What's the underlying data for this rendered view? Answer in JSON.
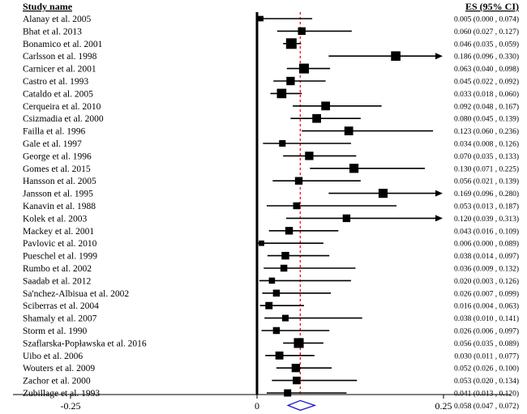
{
  "chart_data": {
    "type": "forest",
    "header_study": "Study name",
    "header_es": "ES (95% CI)",
    "x_ticks": [
      {
        "value": -0.25,
        "label": "-0.25"
      },
      {
        "value": 0,
        "label": "0"
      },
      {
        "value": 0.25,
        "label": "0.25"
      }
    ],
    "xlim": [
      -0.33,
      0.33
    ],
    "pooled_line": 0.058,
    "studies": [
      {
        "name": "Alanay et al. 2005",
        "es": 0.005,
        "lo": 0.0,
        "hi": 0.074,
        "label": "0.005 (0.000 , 0.074)",
        "weight": 0.3
      },
      {
        "name": "Bhat et al. 2013",
        "es": 0.06,
        "lo": 0.027,
        "hi": 0.127,
        "label": "0.060 (0.027 , 0.127)",
        "weight": 0.6
      },
      {
        "name": "Bonamico et al. 2001",
        "es": 0.046,
        "lo": 0.035,
        "hi": 0.059,
        "label": "0.046 (0.035 , 0.059)",
        "weight": 1.0
      },
      {
        "name": "Carlsson et al. 1998",
        "es": 0.186,
        "lo": 0.096,
        "hi": 0.33,
        "label": "0.186 (0.096 , 0.330)",
        "weight": 0.85,
        "arrow": true
      },
      {
        "name": "Carnicer et al. 2001",
        "es": 0.063,
        "lo": 0.04,
        "hi": 0.098,
        "label": "0.063 (0.040 , 0.098)",
        "weight": 0.9
      },
      {
        "name": "Castro et al. 1993",
        "es": 0.045,
        "lo": 0.022,
        "hi": 0.092,
        "label": "0.045 (0.022 , 0.092)",
        "weight": 0.7
      },
      {
        "name": "Cataldo et al. 2005",
        "es": 0.033,
        "lo": 0.018,
        "hi": 0.06,
        "label": "0.033 (0.018 , 0.060)",
        "weight": 0.85
      },
      {
        "name": "Cerqueira et al. 2010",
        "es": 0.092,
        "lo": 0.048,
        "hi": 0.167,
        "label": "0.092 (0.048 , 0.167)",
        "weight": 0.75
      },
      {
        "name": "Csizmadia et al. 2000",
        "es": 0.08,
        "lo": 0.045,
        "hi": 0.139,
        "label": "0.080 (0.045 , 0.139)",
        "weight": 0.75
      },
      {
        "name": "Failla et al. 1996",
        "es": 0.123,
        "lo": 0.06,
        "hi": 0.236,
        "label": "0.123 (0.060 , 0.236)",
        "weight": 0.75
      },
      {
        "name": "Gale et al. 1997",
        "es": 0.034,
        "lo": 0.008,
        "hi": 0.126,
        "label": "0.034 (0.008 , 0.126)",
        "weight": 0.45
      },
      {
        "name": "George et al. 1996",
        "es": 0.07,
        "lo": 0.035,
        "hi": 0.133,
        "label": "0.070 (0.035 , 0.133)",
        "weight": 0.7
      },
      {
        "name": "Gomes et al. 2015",
        "es": 0.13,
        "lo": 0.071,
        "hi": 0.225,
        "label": "0.130 (0.071 , 0.225)",
        "weight": 0.8
      },
      {
        "name": "Hansson et al. 2005",
        "es": 0.056,
        "lo": 0.021,
        "hi": 0.139,
        "label": "0.056 (0.021 , 0.139)",
        "weight": 0.6
      },
      {
        "name": "Jansson et al. 1995",
        "es": 0.169,
        "lo": 0.096,
        "hi": 0.28,
        "label": "0.169 (0.096 , 0.280)",
        "weight": 0.8,
        "arrow": true
      },
      {
        "name": "Kanavin et al. 1988",
        "es": 0.053,
        "lo": 0.013,
        "hi": 0.187,
        "label": "0.053 (0.013 , 0.187)",
        "weight": 0.5
      },
      {
        "name": "Kolek et al. 2003",
        "es": 0.12,
        "lo": 0.039,
        "hi": 0.313,
        "label": "0.120 (0.039 , 0.313)",
        "weight": 0.6,
        "arrow": true
      },
      {
        "name": "Mackey et al. 2001",
        "es": 0.043,
        "lo": 0.016,
        "hi": 0.109,
        "label": "0.043 (0.016 , 0.109)",
        "weight": 0.6
      },
      {
        "name": "Pavlovic et al. 2010",
        "es": 0.006,
        "lo": 0.0,
        "hi": 0.089,
        "label": "0.006 (0.000 , 0.089)",
        "weight": 0.3
      },
      {
        "name": "Pueschel et al. 1999",
        "es": 0.038,
        "lo": 0.014,
        "hi": 0.097,
        "label": "0.038 (0.014 , 0.097)",
        "weight": 0.6
      },
      {
        "name": "Rumbo et al. 2002",
        "es": 0.036,
        "lo": 0.009,
        "hi": 0.132,
        "label": "0.036 (0.009 , 0.132)",
        "weight": 0.5
      },
      {
        "name": "Saadab et al. 2012",
        "es": 0.02,
        "lo": 0.003,
        "hi": 0.126,
        "label": "0.020 (0.003 , 0.126)",
        "weight": 0.4
      },
      {
        "name": "Sa'nchez-Albisua et al. 2002",
        "es": 0.026,
        "lo": 0.007,
        "hi": 0.099,
        "label": "0.026 (0.007 , 0.099)",
        "weight": 0.5
      },
      {
        "name": "Sciberras et al. 2004",
        "es": 0.016,
        "lo": 0.004,
        "hi": 0.063,
        "label": "0.016 (0.004 , 0.063)",
        "weight": 0.55
      },
      {
        "name": "Shamaly et al. 2007",
        "es": 0.038,
        "lo": 0.01,
        "hi": 0.141,
        "label": "0.038 (0.010 , 0.141)",
        "weight": 0.45
      },
      {
        "name": "Storm et al. 1990",
        "es": 0.026,
        "lo": 0.006,
        "hi": 0.097,
        "label": "0.026 (0.006 , 0.097)",
        "weight": 0.5
      },
      {
        "name": "Szaflarska-Popławska et al. 2016",
        "es": 0.056,
        "lo": 0.035,
        "hi": 0.089,
        "label": "0.056 (0.035 , 0.089)",
        "weight": 0.9
      },
      {
        "name": "Uibo et al. 2006",
        "es": 0.03,
        "lo": 0.011,
        "hi": 0.077,
        "label": "0.030 (0.011 , 0.077)",
        "weight": 0.65
      },
      {
        "name": "Wouters et al. 2009",
        "es": 0.052,
        "lo": 0.026,
        "hi": 0.1,
        "label": "0.052 (0.026 , 0.100)",
        "weight": 0.7
      },
      {
        "name": "Zachor et al. 2000",
        "es": 0.053,
        "lo": 0.02,
        "hi": 0.134,
        "label": "0.053 (0.020 , 0.134)",
        "weight": 0.6
      },
      {
        "name": "Zubillage et al. 1993",
        "es": 0.041,
        "lo": 0.013,
        "hi": 0.12,
        "label": "0.041 (0.013 , 0.120)",
        "weight": 0.55
      }
    ],
    "pooled": {
      "es": 0.058,
      "lo": 0.047,
      "hi": 0.072,
      "label": "0.058 (0.047 , 0.072)"
    },
    "colors": {
      "marks": "#000000",
      "ref_line": "#ff0000",
      "diamond": "#1a1acc"
    }
  }
}
